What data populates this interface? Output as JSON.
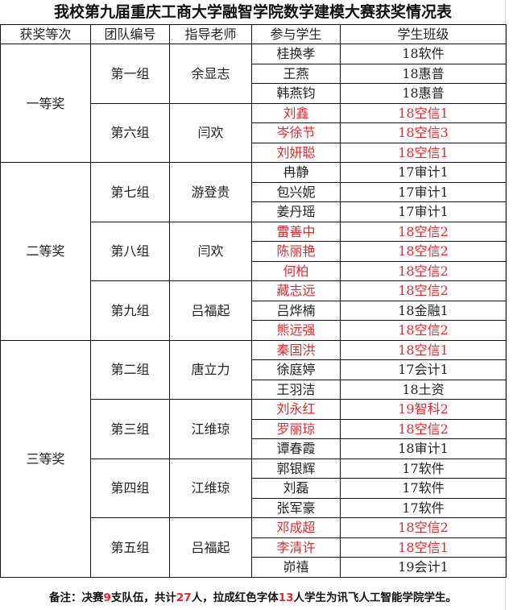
{
  "title": "我校第九届重庆工商大学融智学院数学建模大赛获奖情况表",
  "headers": [
    "获奖等次",
    "团队编号",
    "指导老师",
    "参与学生",
    "学生班级"
  ],
  "highlight_color": "#e8262c",
  "awards": [
    {
      "level": "一等奖",
      "teams": [
        {
          "team": "第一组",
          "advisor": "余显志",
          "students": [
            {
              "name": "桂换孝",
              "class": "18软件",
              "red": false
            },
            {
              "name": "王燕",
              "class": "18惠普",
              "red": false
            },
            {
              "name": "韩燕钧",
              "class": "18惠普",
              "red": false
            }
          ]
        },
        {
          "team": "第六组",
          "advisor": "闫欢",
          "students": [
            {
              "name": "刘鑫",
              "class": "18空信1",
              "red": true
            },
            {
              "name": "岑徐节",
              "class": "18空信3",
              "red": true
            },
            {
              "name": "刘妍聪",
              "class": "18空信1",
              "red": true
            }
          ]
        }
      ]
    },
    {
      "level": "二等奖",
      "teams": [
        {
          "team": "第七组",
          "advisor": "游登贵",
          "students": [
            {
              "name": "冉静",
              "class": "17审计1",
              "red": false
            },
            {
              "name": "包兴妮",
              "class": "17审计1",
              "red": false
            },
            {
              "name": "姜丹瑶",
              "class": "17审计1",
              "red": false
            }
          ]
        },
        {
          "team": "第八组",
          "advisor": "闫欢",
          "students": [
            {
              "name": "雷善中",
              "class": "18空信2",
              "red": true
            },
            {
              "name": "陈丽艳",
              "class": "18空信2",
              "red": true
            },
            {
              "name": "何柏",
              "class": "18空信2",
              "red": true
            }
          ]
        },
        {
          "team": "第九组",
          "advisor": "吕福起",
          "students": [
            {
              "name": "藏志远",
              "class": "18空信2",
              "red": true
            },
            {
              "name": "吕烨楠",
              "class": "18金融1",
              "red": false
            },
            {
              "name": "熊远强",
              "class": "18空信2",
              "red": true
            }
          ]
        }
      ]
    },
    {
      "level": "三等奖",
      "teams": [
        {
          "team": "第二组",
          "advisor": "唐立力",
          "students": [
            {
              "name": "秦国洪",
              "class": "18空信1",
              "red": true
            },
            {
              "name": "徐庭婷",
              "class": "17会计1",
              "red": false
            },
            {
              "name": "王羽洁",
              "class": "18土资",
              "red": false
            }
          ]
        },
        {
          "team": "第三组",
          "advisor": "江维琼",
          "students": [
            {
              "name": "刘永红",
              "class": "19智科2",
              "red": true
            },
            {
              "name": "罗丽琼",
              "class": "18空信2",
              "red": true
            },
            {
              "name": "谭春霞",
              "class": "18审计1",
              "red": false
            }
          ]
        },
        {
          "team": "第四组",
          "advisor": "江维琼",
          "students": [
            {
              "name": "郭银辉",
              "class": "17软件",
              "red": false
            },
            {
              "name": "刘磊",
              "class": "17软件",
              "red": false
            },
            {
              "name": "张军豪",
              "class": "17软件",
              "red": false
            }
          ]
        },
        {
          "team": "第五组",
          "advisor": "吕福起",
          "students": [
            {
              "name": "邓成超",
              "class": "18空信2",
              "red": true
            },
            {
              "name": "李清许",
              "class": "18空信1",
              "red": true
            },
            {
              "name": "峁禧",
              "class": "19会计1",
              "red": false
            }
          ]
        }
      ]
    }
  ],
  "note": {
    "p1": "备注：决赛",
    "n1": "9",
    "p2": "支队伍，共计",
    "n2": "27",
    "p3": "人，拉成红色字体",
    "n3": "13",
    "p4": "人学生为讯飞人工智能学院学生。"
  }
}
